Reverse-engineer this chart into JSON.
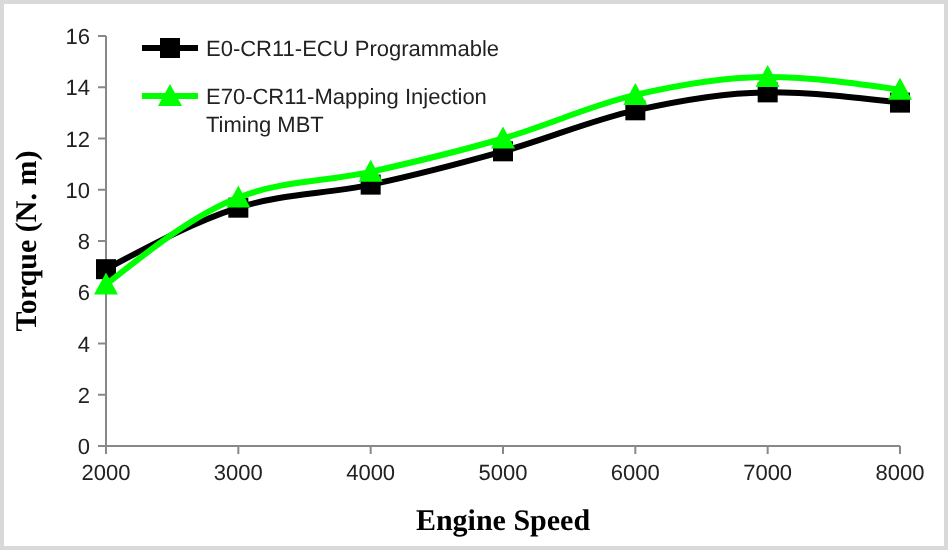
{
  "chart_data": {
    "type": "line",
    "xlabel": "Engine Speed",
    "ylabel": "Torque (N. m)",
    "x": [
      2000,
      3000,
      4000,
      5000,
      6000,
      7000,
      8000
    ],
    "xlim": [
      2000,
      8000
    ],
    "xticks": [
      2000,
      3000,
      4000,
      5000,
      6000,
      7000,
      8000
    ],
    "ylim": [
      0,
      16
    ],
    "yticks": [
      0,
      2,
      4,
      6,
      8,
      10,
      12,
      14,
      16
    ],
    "grid": false,
    "legend": "top left",
    "series": [
      {
        "name": "E0-CR11-ECU Programmable",
        "color": "#000000",
        "marker": "square",
        "values": [
          6.9,
          9.3,
          10.2,
          11.5,
          13.1,
          13.8,
          13.4
        ]
      },
      {
        "name": "E70-CR11-Mapping Injection Timing MBT",
        "color": "#00ff00",
        "marker": "triangle",
        "values": [
          6.3,
          9.7,
          10.7,
          12.0,
          13.7,
          14.4,
          13.9
        ]
      }
    ]
  }
}
